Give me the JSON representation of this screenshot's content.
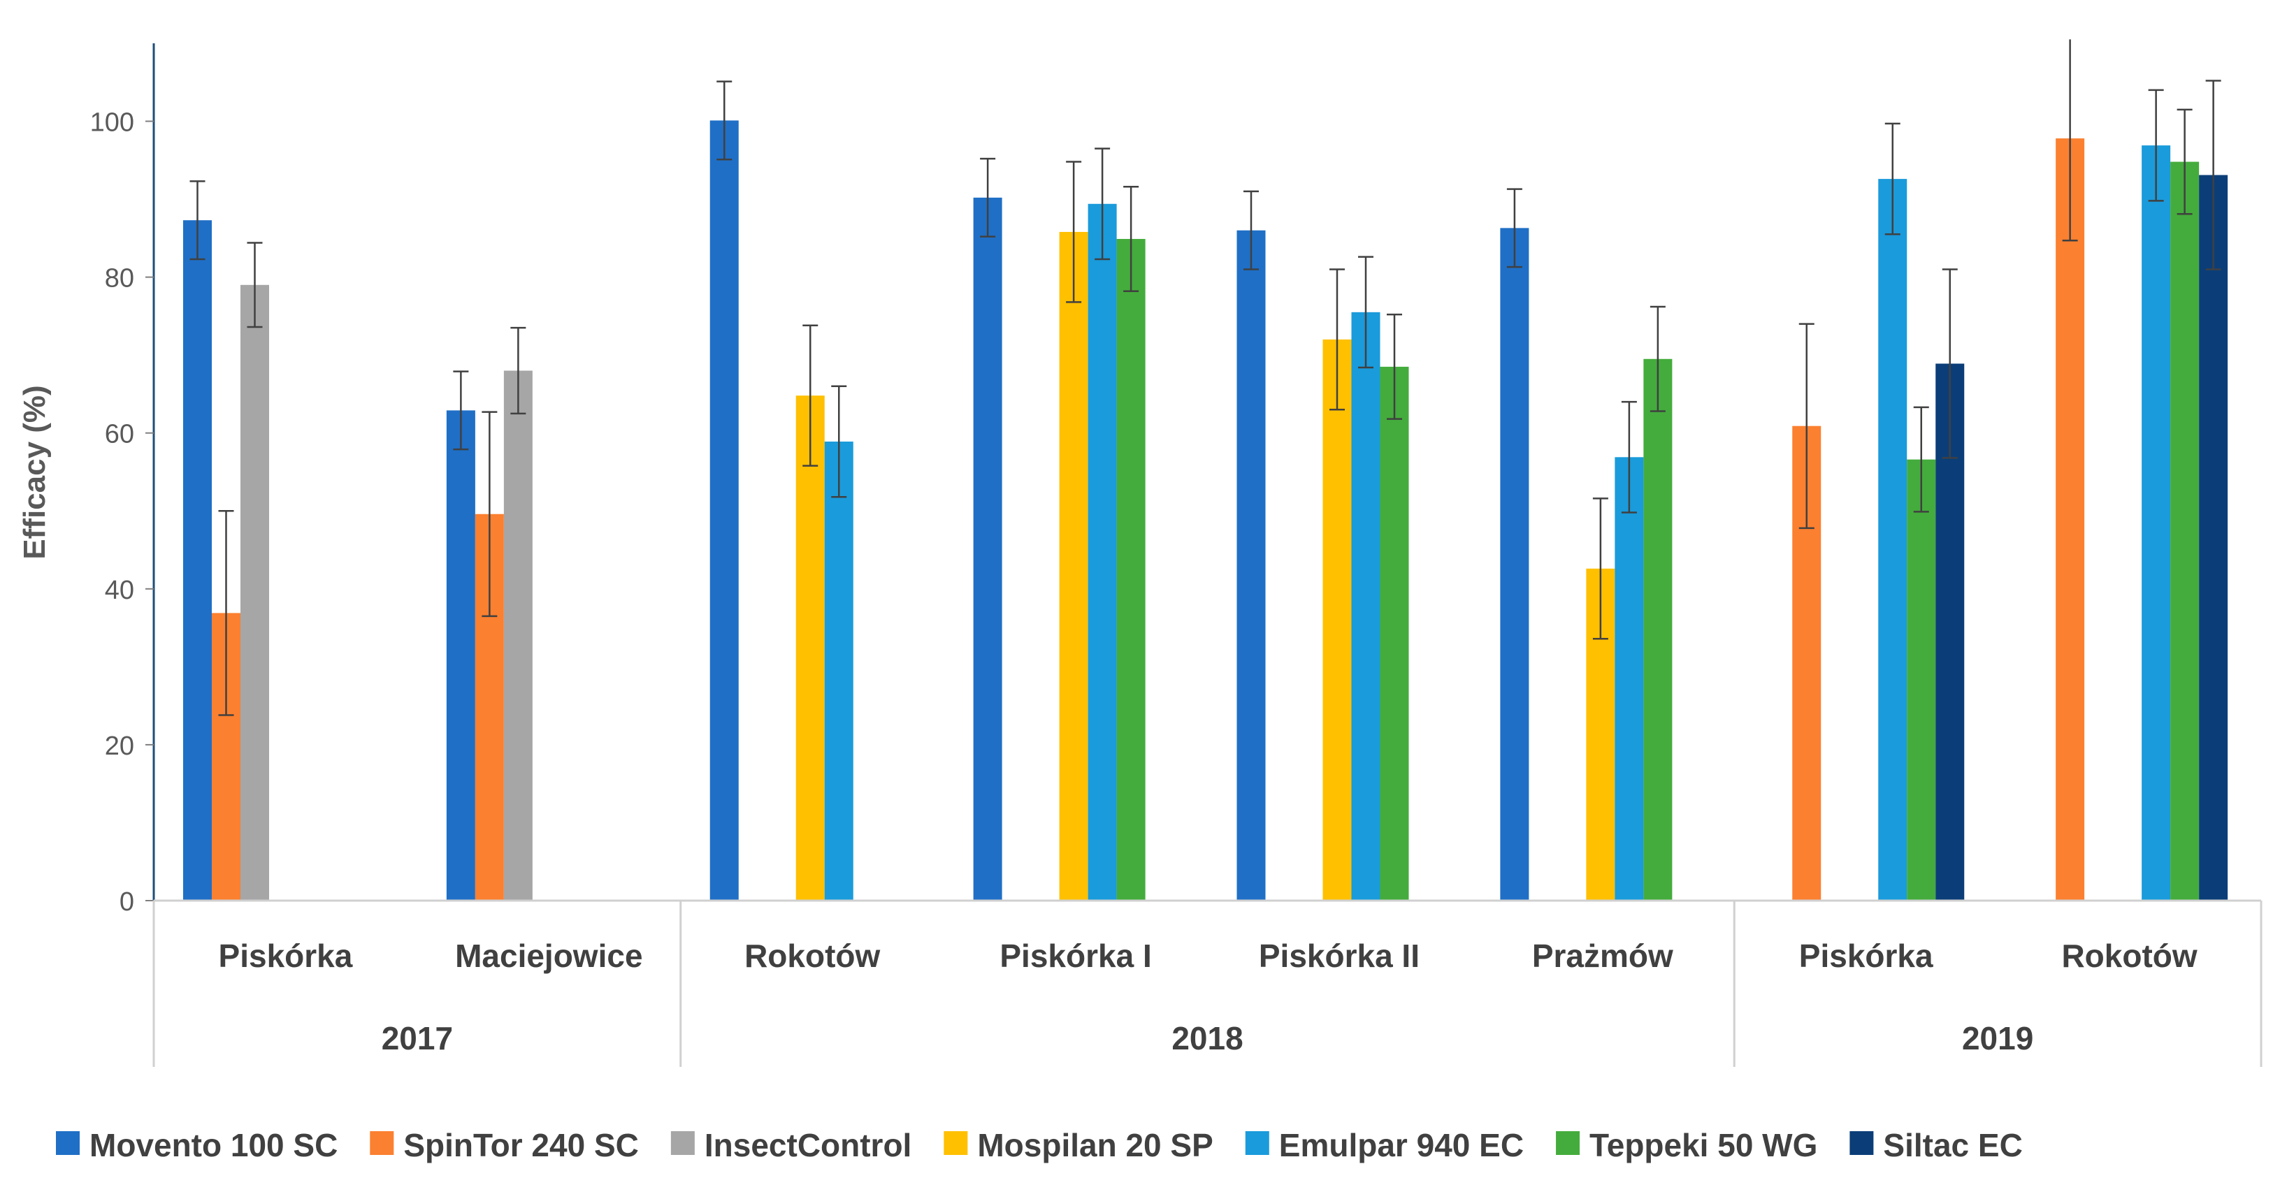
{
  "chart_data": {
    "type": "bar",
    "title": "",
    "ylabel": "Efficacy (%)",
    "xlabel": "",
    "ylim": [
      0,
      110
    ],
    "yticks": [
      0,
      20,
      40,
      60,
      80,
      100
    ],
    "grid": false,
    "legend_position": "bottom",
    "error_bars": true,
    "groups": [
      {
        "year": "2017",
        "sites": [
          "Piskórka",
          "Maciejowice"
        ]
      },
      {
        "year": "2018",
        "sites": [
          "Rokotów",
          "Piskórka I",
          "Piskórka II",
          "Prażmów"
        ]
      },
      {
        "year": "2019",
        "sites": [
          "Piskórka",
          "Rokotów"
        ]
      }
    ],
    "categories": [
      "Piskórka",
      "Maciejowice",
      "Rokotów",
      "Piskórka I",
      "Piskórka II",
      "Prażmów",
      "Piskórka",
      "Rokotów"
    ],
    "series": [
      {
        "name": "Movento 100 SC",
        "color": "#1F6FC6",
        "values": [
          87.3,
          62.9,
          100.1,
          90.2,
          86.0,
          86.3,
          null,
          null
        ],
        "errors": [
          5.0,
          5.0,
          5.0,
          5.0,
          5.0,
          5.0,
          null,
          null
        ]
      },
      {
        "name": "SpinTor 240 SC",
        "color": "#FB8030",
        "values": [
          36.9,
          49.6,
          null,
          null,
          null,
          null,
          60.9,
          97.8
        ],
        "errors": [
          13.1,
          13.1,
          null,
          null,
          null,
          null,
          13.1,
          13.1
        ]
      },
      {
        "name": "InsectControl",
        "color": "#A6A6A6",
        "values": [
          79.0,
          68.0,
          null,
          null,
          null,
          null,
          null,
          null
        ],
        "errors": [
          5.4,
          5.5,
          null,
          null,
          null,
          null,
          null,
          null
        ]
      },
      {
        "name": "Mospilan 20 SP",
        "color": "#FFC000",
        "values": [
          null,
          null,
          64.8,
          85.8,
          72.0,
          42.6,
          null,
          null
        ],
        "errors": [
          null,
          null,
          9.0,
          9.0,
          9.0,
          9.0,
          null,
          null
        ]
      },
      {
        "name": "Emulpar 940 EC",
        "color": "#1A9BDB",
        "values": [
          null,
          null,
          58.9,
          89.4,
          75.5,
          56.9,
          92.6,
          96.9
        ],
        "errors": [
          null,
          null,
          7.1,
          7.1,
          7.1,
          7.1,
          7.1,
          7.1
        ]
      },
      {
        "name": "Teppeki 50 WG",
        "color": "#44AC3C",
        "values": [
          null,
          null,
          null,
          84.9,
          68.5,
          69.5,
          56.6,
          94.8
        ],
        "errors": [
          null,
          null,
          null,
          6.7,
          6.7,
          6.7,
          6.7,
          6.7
        ]
      },
      {
        "name": "Siltac EC",
        "color": "#0B3E78",
        "values": [
          null,
          null,
          null,
          null,
          null,
          null,
          68.9,
          93.1
        ],
        "errors": [
          null,
          null,
          null,
          null,
          null,
          null,
          12.1,
          12.1
        ]
      }
    ]
  }
}
